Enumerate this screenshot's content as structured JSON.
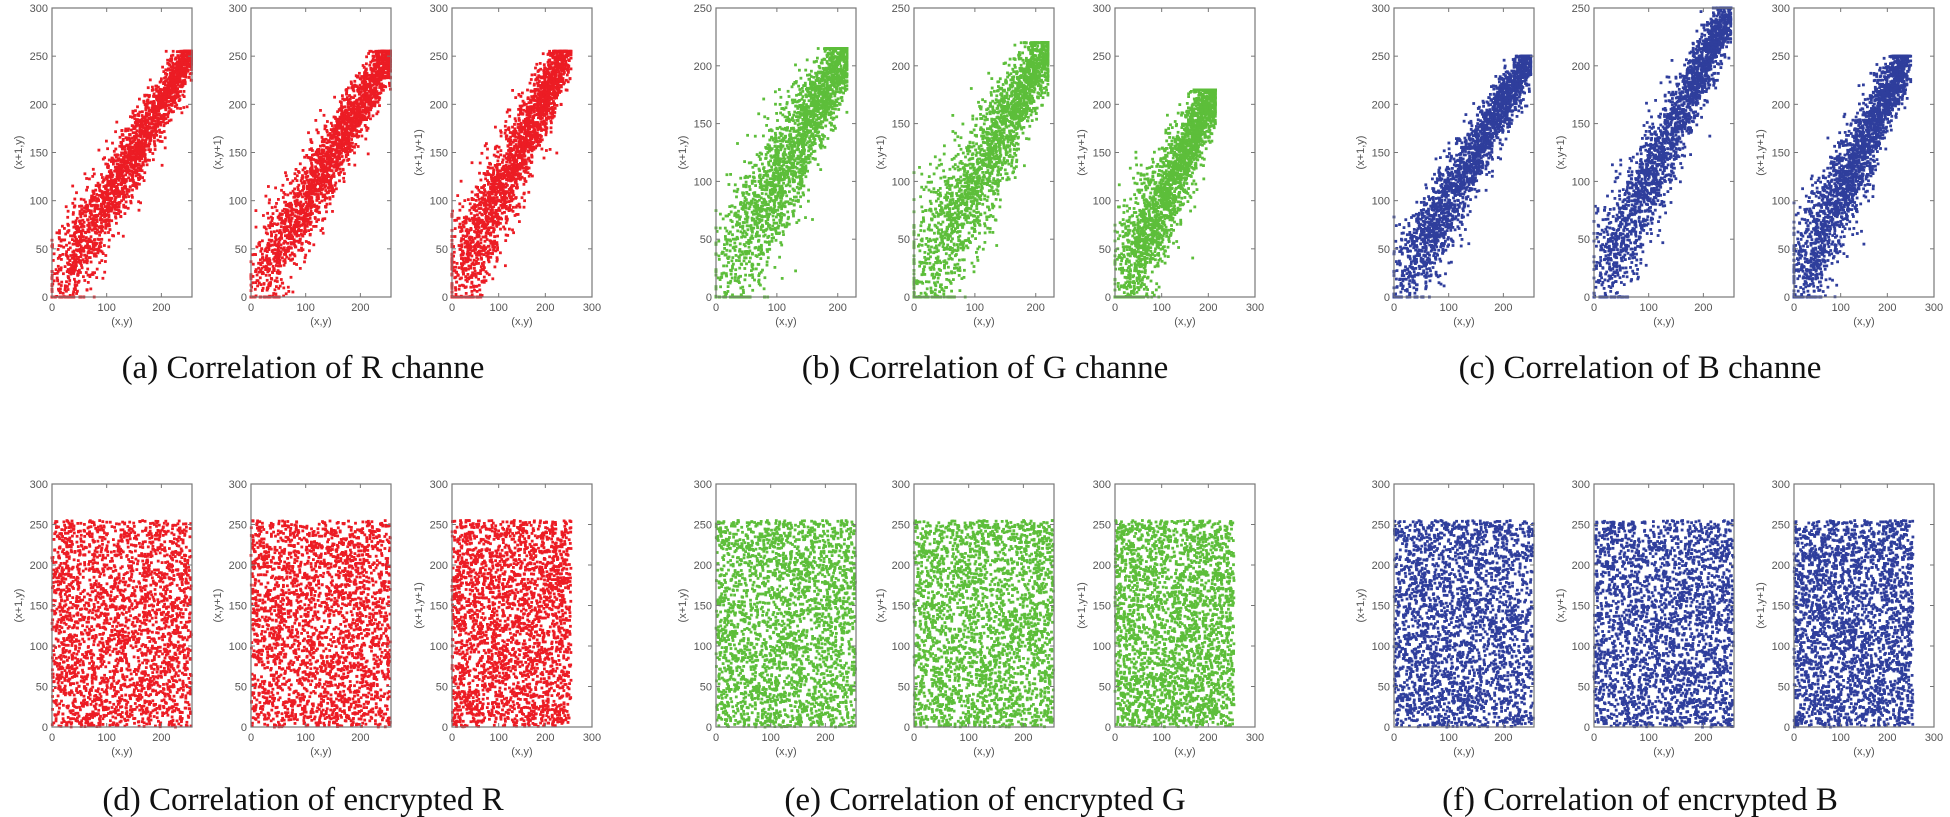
{
  "colors": {
    "R": "#ec1c24",
    "G": "#5dbe3a",
    "B": "#2f3e9c"
  },
  "captions": [
    "(a) Correlation of R channe",
    "(b) Correlation of G channe",
    "(c) Correlation of B channe",
    "(d) Correlation of encrypted R",
    "(e) Correlation of encrypted G",
    "(f) Correlation of encrypted B"
  ],
  "chart_data": [
    {
      "panel": "a",
      "type": "scatter",
      "channel": "R",
      "pattern": "correlated",
      "xlabel": "(x,y)",
      "ylabel": "(x+1,y)",
      "xlim": [
        0,
        256
      ],
      "ylim": [
        0,
        300
      ],
      "xticks": [
        0,
        100,
        200
      ],
      "yticks": [
        0,
        50,
        100,
        150,
        200,
        250,
        300
      ],
      "data_max": 255
    },
    {
      "panel": "a",
      "type": "scatter",
      "channel": "R",
      "pattern": "correlated",
      "xlabel": "(x,y)",
      "ylabel": "(x,y+1)",
      "xlim": [
        0,
        256
      ],
      "ylim": [
        0,
        300
      ],
      "xticks": [
        0,
        100,
        200
      ],
      "yticks": [
        0,
        50,
        100,
        150,
        200,
        250,
        300
      ],
      "data_max": 255
    },
    {
      "panel": "a",
      "type": "scatter",
      "channel": "R",
      "pattern": "correlated",
      "xlabel": "(x,y)",
      "ylabel": "(x+1,y+1)",
      "xlim": [
        0,
        300
      ],
      "ylim": [
        0,
        300
      ],
      "xticks": [
        0,
        100,
        200,
        300
      ],
      "yticks": [
        0,
        50,
        100,
        150,
        200,
        250,
        300
      ],
      "data_max": 255
    },
    {
      "panel": "b",
      "type": "scatter",
      "channel": "G",
      "pattern": "correlated",
      "xlabel": "(x,y)",
      "ylabel": "(x+1,y)",
      "xlim": [
        0,
        230
      ],
      "ylim": [
        0,
        250
      ],
      "xticks": [
        0,
        100,
        200
      ],
      "yticks": [
        0,
        50,
        100,
        150,
        200,
        250
      ],
      "data_max": 215
    },
    {
      "panel": "b",
      "type": "scatter",
      "channel": "G",
      "pattern": "correlated",
      "xlabel": "(x,y)",
      "ylabel": "(x,y+1)",
      "xlim": [
        0,
        230
      ],
      "ylim": [
        0,
        250
      ],
      "xticks": [
        0,
        100,
        200
      ],
      "yticks": [
        0,
        50,
        100,
        150,
        200,
        250
      ],
      "data_max": 220
    },
    {
      "panel": "b",
      "type": "scatter",
      "channel": "G",
      "pattern": "correlated",
      "xlabel": "(x,y)",
      "ylabel": "(x+1,y+1)",
      "xlim": [
        0,
        300
      ],
      "ylim": [
        0,
        300
      ],
      "xticks": [
        0,
        100,
        200,
        300
      ],
      "yticks": [
        0,
        50,
        100,
        150,
        200,
        250,
        300
      ],
      "data_max": 215
    },
    {
      "panel": "c",
      "type": "scatter",
      "channel": "B",
      "pattern": "correlated",
      "xlabel": "(x,y)",
      "ylabel": "(x+1,y)",
      "xlim": [
        0,
        256
      ],
      "ylim": [
        0,
        300
      ],
      "xticks": [
        0,
        100,
        200
      ],
      "yticks": [
        0,
        50,
        100,
        150,
        200,
        250,
        300
      ],
      "data_max": 250
    },
    {
      "panel": "c",
      "type": "scatter",
      "channel": "B",
      "pattern": "correlated",
      "xlabel": "(x,y)",
      "ylabel": "(x,y+1)",
      "xlim": [
        0,
        256
      ],
      "ylim": [
        0,
        250
      ],
      "xticks": [
        0,
        100,
        200
      ],
      "yticks": [
        0,
        50,
        100,
        150,
        200,
        250
      ],
      "data_max": 250
    },
    {
      "panel": "c",
      "type": "scatter",
      "channel": "B",
      "pattern": "correlated",
      "xlabel": "(x,y)",
      "ylabel": "(x+1,y+1)",
      "xlim": [
        0,
        300
      ],
      "ylim": [
        0,
        300
      ],
      "xticks": [
        0,
        100,
        200,
        300
      ],
      "yticks": [
        0,
        50,
        100,
        150,
        200,
        250,
        300
      ],
      "data_max": 250
    },
    {
      "panel": "d",
      "type": "scatter",
      "channel": "R",
      "pattern": "uniform",
      "xlabel": "(x,y)",
      "ylabel": "(x+1,y)",
      "xlim": [
        0,
        256
      ],
      "ylim": [
        0,
        300
      ],
      "xticks": [
        0,
        100,
        200
      ],
      "yticks": [
        0,
        50,
        100,
        150,
        200,
        250,
        300
      ],
      "data_max": 255
    },
    {
      "panel": "d",
      "type": "scatter",
      "channel": "R",
      "pattern": "uniform",
      "xlabel": "(x,y)",
      "ylabel": "(x,y+1)",
      "xlim": [
        0,
        256
      ],
      "ylim": [
        0,
        300
      ],
      "xticks": [
        0,
        100,
        200
      ],
      "yticks": [
        0,
        50,
        100,
        150,
        200,
        250,
        300
      ],
      "data_max": 255
    },
    {
      "panel": "d",
      "type": "scatter",
      "channel": "R",
      "pattern": "uniform",
      "xlabel": "(x,y)",
      "ylabel": "(x+1,y+1)",
      "xlim": [
        0,
        300
      ],
      "ylim": [
        0,
        300
      ],
      "xticks": [
        0,
        100,
        200,
        300
      ],
      "yticks": [
        0,
        50,
        100,
        150,
        200,
        250,
        300
      ],
      "data_max": 255
    },
    {
      "panel": "e",
      "type": "scatter",
      "channel": "G",
      "pattern": "uniform",
      "xlabel": "(x,y)",
      "ylabel": "(x+1,y)",
      "xlim": [
        0,
        256
      ],
      "ylim": [
        0,
        300
      ],
      "xticks": [
        0,
        100,
        200
      ],
      "yticks": [
        0,
        50,
        100,
        150,
        200,
        250,
        300
      ],
      "data_max": 255
    },
    {
      "panel": "e",
      "type": "scatter",
      "channel": "G",
      "pattern": "uniform",
      "xlabel": "(x,y)",
      "ylabel": "(x,y+1)",
      "xlim": [
        0,
        256
      ],
      "ylim": [
        0,
        300
      ],
      "xticks": [
        0,
        100,
        200
      ],
      "yticks": [
        0,
        50,
        100,
        150,
        200,
        250,
        300
      ],
      "data_max": 255
    },
    {
      "panel": "e",
      "type": "scatter",
      "channel": "G",
      "pattern": "uniform",
      "xlabel": "(x,y)",
      "ylabel": "(x+1,y+1)",
      "xlim": [
        0,
        300
      ],
      "ylim": [
        0,
        300
      ],
      "xticks": [
        0,
        100,
        200,
        300
      ],
      "yticks": [
        0,
        50,
        100,
        150,
        200,
        250,
        300
      ],
      "data_max": 255
    },
    {
      "panel": "f",
      "type": "scatter",
      "channel": "B",
      "pattern": "uniform",
      "xlabel": "(x,y)",
      "ylabel": "(x+1,y)",
      "xlim": [
        0,
        256
      ],
      "ylim": [
        0,
        300
      ],
      "xticks": [
        0,
        100,
        200
      ],
      "yticks": [
        0,
        50,
        100,
        150,
        200,
        250,
        300
      ],
      "data_max": 255
    },
    {
      "panel": "f",
      "type": "scatter",
      "channel": "B",
      "pattern": "uniform",
      "xlabel": "(x,y)",
      "ylabel": "(x,y+1)",
      "xlim": [
        0,
        256
      ],
      "ylim": [
        0,
        300
      ],
      "xticks": [
        0,
        100,
        200
      ],
      "yticks": [
        0,
        50,
        100,
        150,
        200,
        250,
        300
      ],
      "data_max": 255
    },
    {
      "panel": "f",
      "type": "scatter",
      "channel": "B",
      "pattern": "uniform",
      "xlabel": "(x,y)",
      "ylabel": "(x+1,y+1)",
      "xlim": [
        0,
        300
      ],
      "ylim": [
        0,
        300
      ],
      "xticks": [
        0,
        100,
        200,
        300
      ],
      "yticks": [
        0,
        50,
        100,
        150,
        200,
        250,
        300
      ],
      "data_max": 255
    }
  ]
}
